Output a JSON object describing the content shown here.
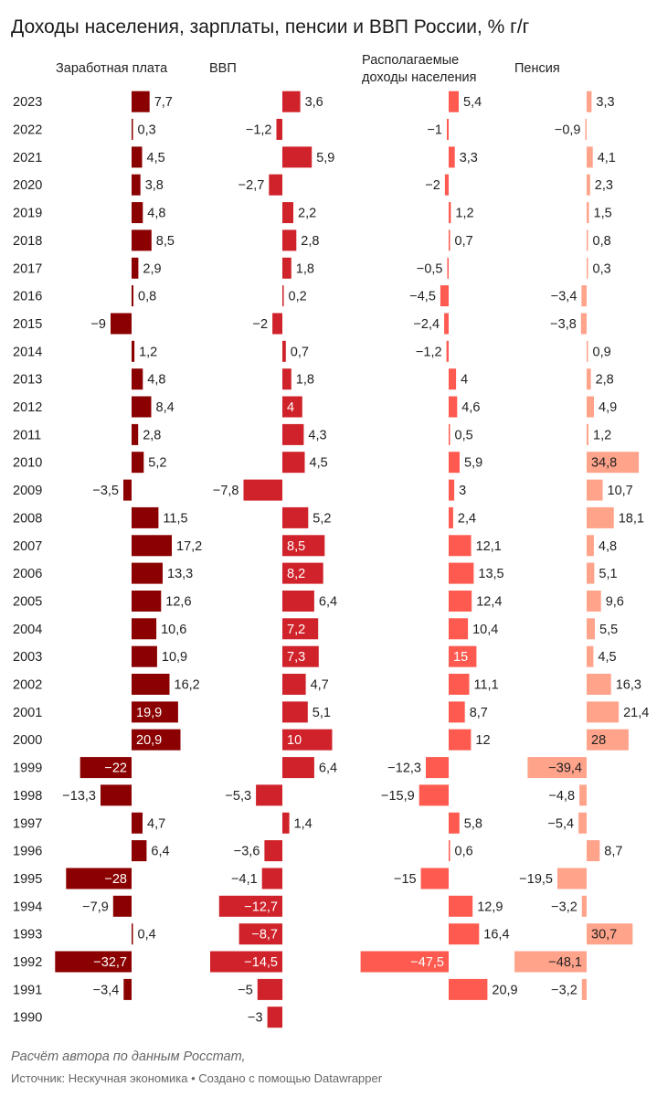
{
  "title": "Доходы населения, зарплаты, пенсии и ВВП России, % г/г",
  "note": "Расчёт автора по данным Росстат,",
  "source": "Источник: Нескучная экономика • Создано с помощью Datawrapper",
  "chart_data": {
    "type": "bar",
    "orientation": "horizontal",
    "title": "Доходы населения, зарплаты, пенсии и ВВП России, % г/г",
    "categories": [
      "2023",
      "2022",
      "2021",
      "2020",
      "2019",
      "2018",
      "2017",
      "2016",
      "2015",
      "2014",
      "2013",
      "2012",
      "2011",
      "2010",
      "2009",
      "2008",
      "2007",
      "2006",
      "2005",
      "2004",
      "2003",
      "2002",
      "2001",
      "2000",
      "1999",
      "1998",
      "1997",
      "1996",
      "1995",
      "1994",
      "1993",
      "1992",
      "1991",
      "1990"
    ],
    "series": [
      {
        "name": "Заработная плата",
        "color": "#8b0000",
        "labels": [
          "7,7",
          "0,3",
          "4,5",
          "3,8",
          "4,8",
          "8,5",
          "2,9",
          "0,8",
          "−9",
          "1,2",
          "4,8",
          "8,4",
          "2,8",
          "5,2",
          "−3,5",
          "11,5",
          "17,2",
          "13,3",
          "12,6",
          "10,6",
          "10,9",
          "16,2",
          "19,9",
          "20,9",
          "−22",
          "−13,3",
          "4,7",
          "6,4",
          "−28",
          "−7,9",
          "0,4",
          "−32,7",
          "−3,4",
          ""
        ],
        "values": [
          7.7,
          0.3,
          4.5,
          3.8,
          4.8,
          8.5,
          2.9,
          0.8,
          -9,
          1.2,
          4.8,
          8.4,
          2.8,
          5.2,
          -3.5,
          11.5,
          17.2,
          13.3,
          12.6,
          10.6,
          10.9,
          16.2,
          19.9,
          20.9,
          -22,
          -13.3,
          4.7,
          6.4,
          -28,
          -7.9,
          0.4,
          -32.7,
          -3.4,
          null
        ]
      },
      {
        "name": "ВВП",
        "color": "#d0222a",
        "labels": [
          "3,6",
          "−1,2",
          "5,9",
          "−2,7",
          "2,2",
          "2,8",
          "1,8",
          "0,2",
          "−2",
          "0,7",
          "1,8",
          "4",
          "4,3",
          "4,5",
          "−7,8",
          "5,2",
          "8,5",
          "8,2",
          "6,4",
          "7,2",
          "7,3",
          "4,7",
          "5,1",
          "10",
          "6,4",
          "−5,3",
          "1,4",
          "−3,6",
          "−4,1",
          "−12,7",
          "−8,7",
          "−14,5",
          "−5",
          "−3"
        ],
        "values": [
          3.6,
          -1.2,
          5.9,
          -2.7,
          2.2,
          2.8,
          1.8,
          0.2,
          -2,
          0.7,
          1.8,
          4,
          4.3,
          4.5,
          -7.8,
          5.2,
          8.5,
          8.2,
          6.4,
          7.2,
          7.3,
          4.7,
          5.1,
          10,
          6.4,
          -5.3,
          1.4,
          -3.6,
          -4.1,
          -12.7,
          -8.7,
          -14.5,
          -5,
          -3
        ]
      },
      {
        "name": "Располагаемые доходы населения",
        "name_lines": [
          "Располагаемые",
          "доходы населения"
        ],
        "color": "#ff5a4f",
        "labels": [
          "5,4",
          "−1",
          "3,3",
          "−2",
          "1,2",
          "0,7",
          "−0,5",
          "−4,5",
          "−2,4",
          "−1,2",
          "4",
          "4,6",
          "0,5",
          "5,9",
          "3",
          "2,4",
          "12,1",
          "13,5",
          "12,4",
          "10,4",
          "15",
          "11,1",
          "8,7",
          "12",
          "−12,3",
          "−15,9",
          "5,8",
          "0,6",
          "−15",
          "12,9",
          "16,4",
          "−47,5",
          "20,9",
          ""
        ],
        "values": [
          5.4,
          -1,
          3.3,
          -2,
          1.2,
          0.7,
          -0.5,
          -4.5,
          -2.4,
          -1.2,
          4,
          4.6,
          0.5,
          5.9,
          3,
          2.4,
          12.1,
          13.5,
          12.4,
          10.4,
          15,
          11.1,
          8.7,
          12,
          -12.3,
          -15.9,
          5.8,
          0.6,
          -15,
          12.9,
          16.4,
          -47.5,
          20.9,
          null
        ]
      },
      {
        "name": "Пенсия",
        "color": "#ffa38a",
        "labels": [
          "3,3",
          "−0,9",
          "4,1",
          "2,3",
          "1,5",
          "0,8",
          "0,3",
          "−3,4",
          "−3,8",
          "0,9",
          "2,8",
          "4,9",
          "1,2",
          "34,8",
          "10,7",
          "18,1",
          "4,8",
          "5,1",
          "9,6",
          "5,5",
          "4,5",
          "16,3",
          "21,4",
          "28",
          "−39,4",
          "−4,8",
          "−5,4",
          "8,7",
          "−19,5",
          "−3,2",
          "30,7",
          "−48,1",
          "−3,2",
          ""
        ],
        "values": [
          3.3,
          -0.9,
          4.1,
          2.3,
          1.5,
          0.8,
          0.3,
          -3.4,
          -3.8,
          0.9,
          2.8,
          4.9,
          1.2,
          34.8,
          10.7,
          18.1,
          4.8,
          5.1,
          9.6,
          5.5,
          4.5,
          16.3,
          21.4,
          28,
          -39.4,
          -4.8,
          -5.4,
          8.7,
          -19.5,
          -3.2,
          30.7,
          -48.1,
          -3.2,
          null
        ]
      }
    ]
  }
}
